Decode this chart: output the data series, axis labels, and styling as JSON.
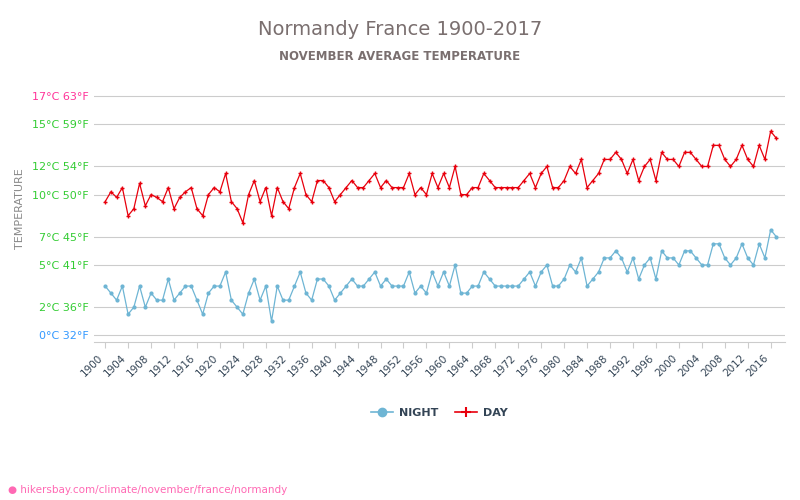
{
  "title": "Normandy France 1900-2017",
  "subtitle": "NOVEMBER AVERAGE TEMPERATURE",
  "ylabel": "TEMPERATURE",
  "xlabel_url": "hikersbay.com/climate/november/france/normandy",
  "title_color": "#7a6f6f",
  "subtitle_color": "#7a6f6f",
  "background_color": "#ffffff",
  "grid_color": "#cccccc",
  "years": [
    1900,
    1901,
    1902,
    1903,
    1904,
    1905,
    1906,
    1907,
    1908,
    1909,
    1910,
    1911,
    1912,
    1913,
    1914,
    1915,
    1916,
    1917,
    1918,
    1919,
    1920,
    1921,
    1922,
    1923,
    1924,
    1925,
    1926,
    1927,
    1928,
    1929,
    1930,
    1931,
    1932,
    1933,
    1934,
    1935,
    1936,
    1937,
    1938,
    1939,
    1940,
    1941,
    1942,
    1943,
    1944,
    1945,
    1946,
    1947,
    1948,
    1949,
    1950,
    1951,
    1952,
    1953,
    1954,
    1955,
    1956,
    1957,
    1958,
    1959,
    1960,
    1961,
    1962,
    1963,
    1964,
    1965,
    1966,
    1967,
    1968,
    1969,
    1970,
    1971,
    1972,
    1973,
    1974,
    1975,
    1976,
    1977,
    1978,
    1979,
    1980,
    1981,
    1982,
    1983,
    1984,
    1985,
    1986,
    1987,
    1988,
    1989,
    1990,
    1991,
    1992,
    1993,
    1994,
    1995,
    1996,
    1997,
    1998,
    1999,
    2000,
    2001,
    2002,
    2003,
    2004,
    2005,
    2006,
    2007,
    2008,
    2009,
    2010,
    2011,
    2012,
    2013,
    2014,
    2015,
    2016,
    2017
  ],
  "day_temps": [
    9.5,
    10.2,
    9.8,
    10.5,
    8.5,
    9.0,
    10.8,
    9.2,
    10.0,
    9.8,
    9.5,
    10.5,
    9.0,
    9.8,
    10.2,
    10.5,
    9.0,
    8.5,
    10.0,
    10.5,
    10.2,
    11.5,
    9.5,
    9.0,
    8.0,
    10.0,
    11.0,
    9.5,
    10.5,
    8.5,
    10.5,
    9.5,
    9.0,
    10.5,
    11.5,
    10.0,
    9.5,
    11.0,
    11.0,
    10.5,
    9.5,
    10.0,
    10.5,
    11.0,
    10.5,
    10.5,
    11.0,
    11.5,
    10.5,
    11.0,
    10.5,
    10.5,
    10.5,
    11.5,
    10.0,
    10.5,
    10.0,
    11.5,
    10.5,
    11.5,
    10.5,
    12.0,
    10.0,
    10.0,
    10.5,
    10.5,
    11.5,
    11.0,
    10.5,
    10.5,
    10.5,
    10.5,
    10.5,
    11.0,
    11.5,
    10.5,
    11.5,
    12.0,
    10.5,
    10.5,
    11.0,
    12.0,
    11.5,
    12.5,
    10.5,
    11.0,
    11.5,
    12.5,
    12.5,
    13.0,
    12.5,
    11.5,
    12.5,
    11.0,
    12.0,
    12.5,
    11.0,
    13.0,
    12.5,
    12.5,
    12.0,
    13.0,
    13.0,
    12.5,
    12.0,
    12.0,
    13.5,
    13.5,
    12.5,
    12.0,
    12.5,
    13.5,
    12.5,
    12.0,
    13.5,
    12.5,
    14.5,
    14.0
  ],
  "night_temps": [
    3.5,
    3.0,
    2.5,
    3.5,
    1.5,
    2.0,
    3.5,
    2.0,
    3.0,
    2.5,
    2.5,
    4.0,
    2.5,
    3.0,
    3.5,
    3.5,
    2.5,
    1.5,
    3.0,
    3.5,
    3.5,
    4.5,
    2.5,
    2.0,
    1.5,
    3.0,
    4.0,
    2.5,
    3.5,
    1.0,
    3.5,
    2.5,
    2.5,
    3.5,
    4.5,
    3.0,
    2.5,
    4.0,
    4.0,
    3.5,
    2.5,
    3.0,
    3.5,
    4.0,
    3.5,
    3.5,
    4.0,
    4.5,
    3.5,
    4.0,
    3.5,
    3.5,
    3.5,
    4.5,
    3.0,
    3.5,
    3.0,
    4.5,
    3.5,
    4.5,
    3.5,
    5.0,
    3.0,
    3.0,
    3.5,
    3.5,
    4.5,
    4.0,
    3.5,
    3.5,
    3.5,
    3.5,
    3.5,
    4.0,
    4.5,
    3.5,
    4.5,
    5.0,
    3.5,
    3.5,
    4.0,
    5.0,
    4.5,
    5.5,
    3.5,
    4.0,
    4.5,
    5.5,
    5.5,
    6.0,
    5.5,
    4.5,
    5.5,
    4.0,
    5.0,
    5.5,
    4.0,
    6.0,
    5.5,
    5.5,
    5.0,
    6.0,
    6.0,
    5.5,
    5.0,
    5.0,
    6.5,
    6.5,
    5.5,
    5.0,
    5.5,
    6.5,
    5.5,
    5.0,
    6.5,
    5.5,
    7.5,
    7.0
  ],
  "day_color": "#e8000d",
  "night_color": "#6eb5d4",
  "yticks_celsius": [
    0,
    2,
    5,
    7,
    10,
    12,
    15,
    17
  ],
  "yticks_fahrenheit": [
    32,
    36,
    41,
    45,
    50,
    54,
    59,
    63
  ],
  "ytick_colors": [
    "#3399ff",
    "#33cc33",
    "#33cc33",
    "#33cc33",
    "#33cc33",
    "#33cc33",
    "#33cc33",
    "#ff3399"
  ],
  "ymin": -0.5,
  "ymax": 18.5,
  "xtick_years": [
    1900,
    1904,
    1908,
    1912,
    1916,
    1920,
    1924,
    1928,
    1932,
    1936,
    1940,
    1944,
    1948,
    1952,
    1956,
    1960,
    1964,
    1968,
    1972,
    1976,
    1980,
    1984,
    1988,
    1992,
    1996,
    2000,
    2004,
    2008,
    2012,
    2016
  ],
  "legend_night_label": "NIGHT",
  "legend_day_label": "DAY"
}
